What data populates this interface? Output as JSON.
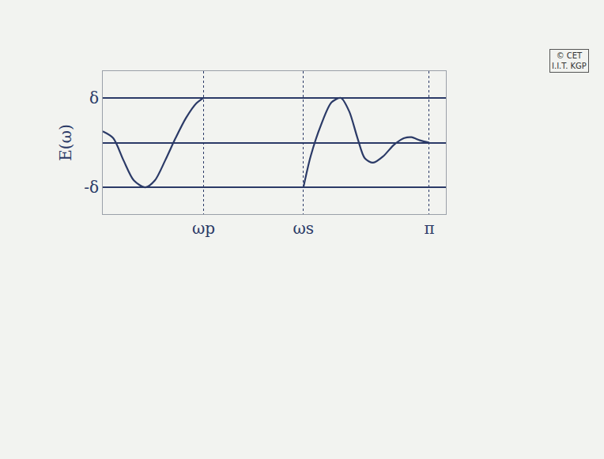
{
  "chart_data": {
    "type": "line",
    "y_label": "E(ω)",
    "x": [
      0,
      0.1,
      0.2,
      0.3,
      0.41,
      0.5,
      0.6,
      0.7,
      0.8,
      0.9,
      0.97,
      1.45,
      1.93,
      2.0,
      2.1,
      2.2,
      2.29,
      2.37,
      2.45,
      2.52,
      2.6,
      2.7,
      2.8,
      2.9,
      2.97,
      3.05,
      3.14
    ],
    "series": [
      {
        "color": "#2b3a67",
        "values": [
          0.25,
          0.1,
          -0.4,
          -0.85,
          -1,
          -0.85,
          -0.4,
          0.1,
          0.55,
          0.88,
          1,
          null,
          -1,
          -0.3,
          0.4,
          0.9,
          1,
          0.7,
          0.1,
          -0.35,
          -0.45,
          -0.3,
          -0.05,
          0.1,
          0.12,
          0.05,
          0
        ]
      }
    ],
    "xlim": [
      0,
      3.3
    ],
    "xticks": [
      {
        "value": 0.97,
        "label": "ωp"
      },
      {
        "value": 1.93,
        "label": "ωs"
      },
      {
        "value": 3.14,
        "label": "π"
      }
    ],
    "ylim": [
      -1.6,
      1.6
    ],
    "yticks": [
      {
        "value": -1,
        "label": "-δ"
      },
      {
        "value": 1,
        "label": "δ"
      }
    ],
    "grid": true,
    "annotations": [
      {
        "text": "© CET\nI.I.T. KGP"
      }
    ]
  }
}
